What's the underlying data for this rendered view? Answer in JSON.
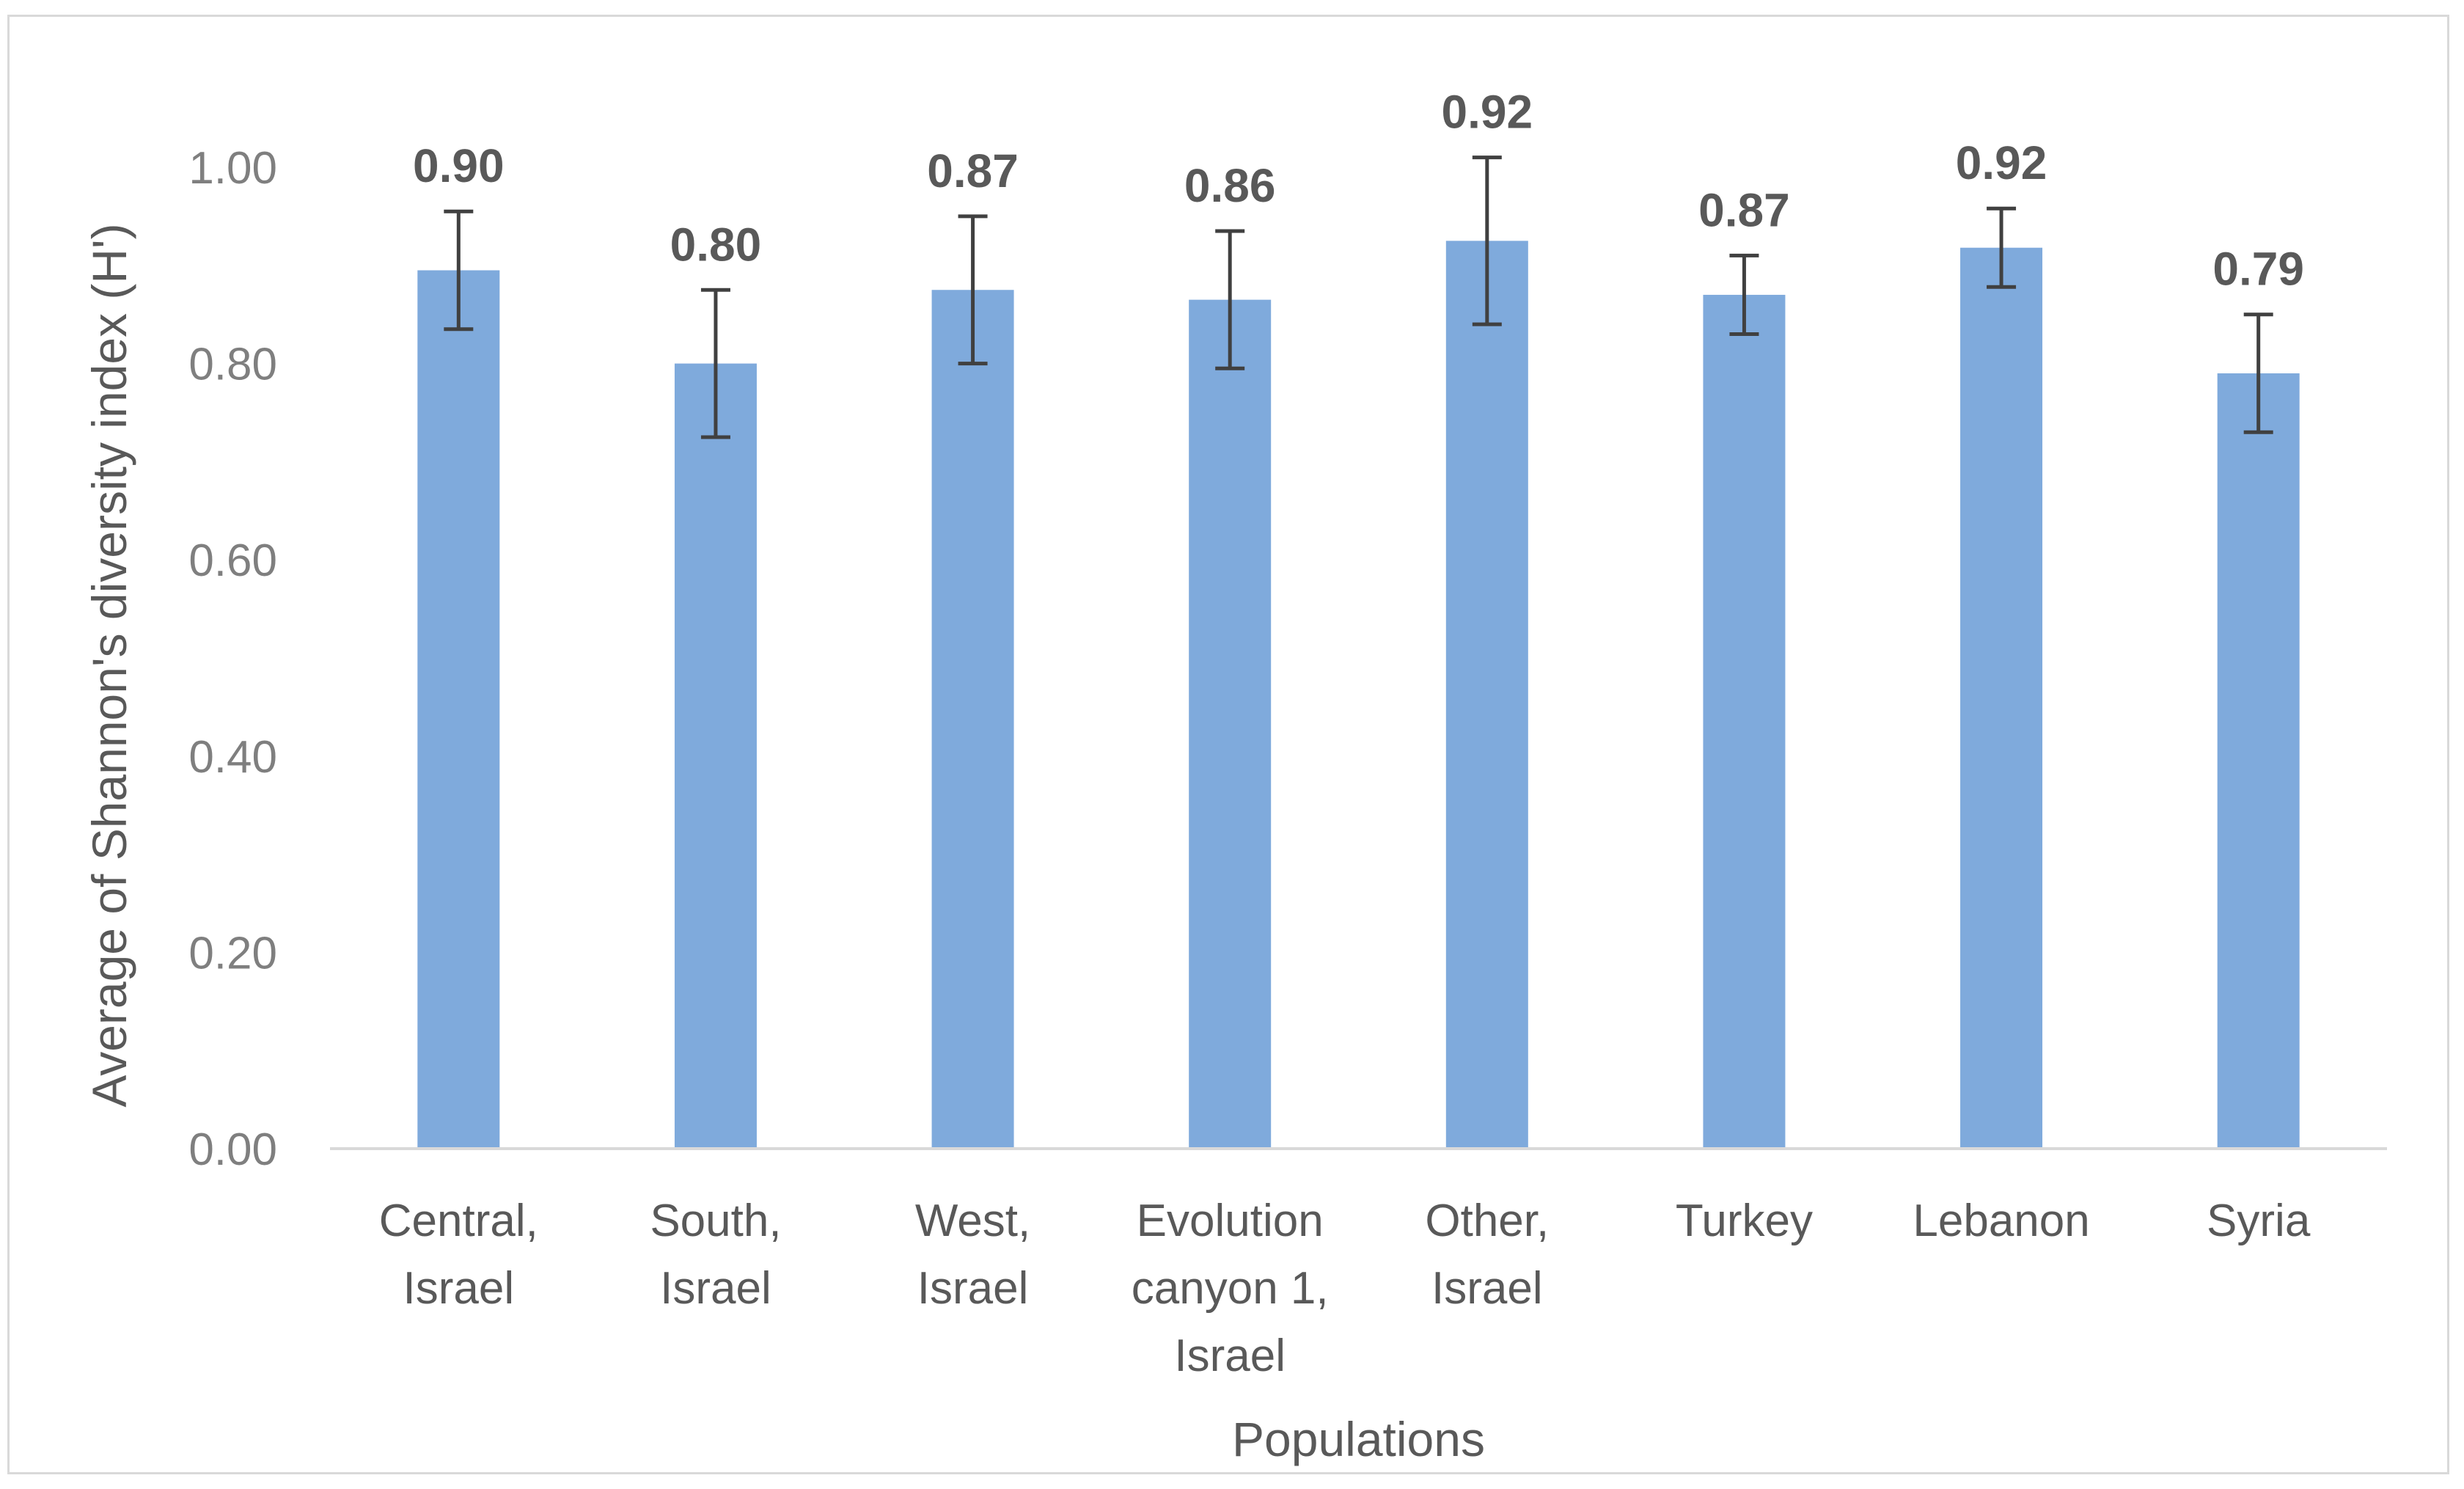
{
  "chart_data": {
    "type": "bar",
    "title": "",
    "xlabel": "Populations",
    "ylabel": "Average of Shannon's diversity index (H')",
    "ylim": [
      0,
      1.0
    ],
    "y_ticks": [
      "0.00",
      "0.20",
      "0.40",
      "0.60",
      "0.80",
      "1.00"
    ],
    "categories": [
      [
        "Central,",
        "Israel"
      ],
      [
        "South,",
        "Israel"
      ],
      [
        "West,",
        "Israel"
      ],
      [
        "Evolution",
        "canyon 1,",
        "Israel"
      ],
      [
        "Other,",
        "Israel"
      ],
      [
        "Turkey"
      ],
      [
        "Lebanon"
      ],
      [
        "Syria"
      ]
    ],
    "values": [
      0.895,
      0.8,
      0.875,
      0.865,
      0.925,
      0.87,
      0.918,
      0.79
    ],
    "value_labels": [
      "0.90",
      "0.80",
      "0.87",
      "0.86",
      "0.92",
      "0.87",
      "0.92",
      "0.79"
    ],
    "error_plus": [
      0.06,
      0.075,
      0.075,
      0.07,
      0.085,
      0.04,
      0.04,
      0.06
    ],
    "error_minus": [
      0.06,
      0.075,
      0.075,
      0.07,
      0.085,
      0.04,
      0.04,
      0.06
    ],
    "grid": false,
    "legend": "none",
    "colors": {
      "bar": "#7FAADC",
      "error": "#404040",
      "axis": "#d9d9d9"
    }
  }
}
